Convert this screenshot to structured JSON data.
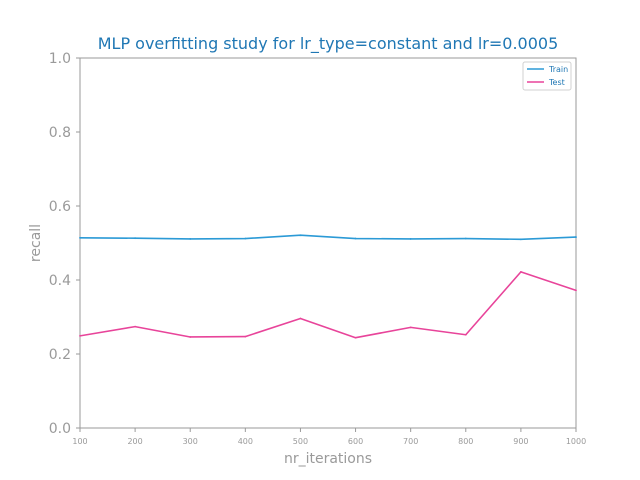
{
  "chart_data": {
    "type": "line",
    "title": "MLP overfitting study for lr_type=constant and lr=0.0005",
    "xlabel": "nr_iterations",
    "ylabel": "recall",
    "x": [
      100,
      200,
      300,
      400,
      500,
      600,
      700,
      800,
      900,
      1000
    ],
    "xlim": [
      100,
      1000
    ],
    "ylim": [
      0.0,
      1.0
    ],
    "xticks": [
      "100",
      "200",
      "300",
      "400",
      "500",
      "600",
      "700",
      "800",
      "900",
      "1000"
    ],
    "yticks": [
      "0.0",
      "0.2",
      "0.4",
      "0.6",
      "0.8",
      "1.0"
    ],
    "grid": false,
    "legend_position": "top-right",
    "series": [
      {
        "name": "Train",
        "color": "#2b9ad6",
        "values": [
          0.514,
          0.513,
          0.511,
          0.512,
          0.521,
          0.512,
          0.511,
          0.512,
          0.51,
          0.516
        ]
      },
      {
        "name": "Test",
        "color": "#e8449a",
        "values": [
          0.249,
          0.274,
          0.246,
          0.247,
          0.296,
          0.244,
          0.272,
          0.252,
          0.422,
          0.372
        ]
      }
    ]
  }
}
